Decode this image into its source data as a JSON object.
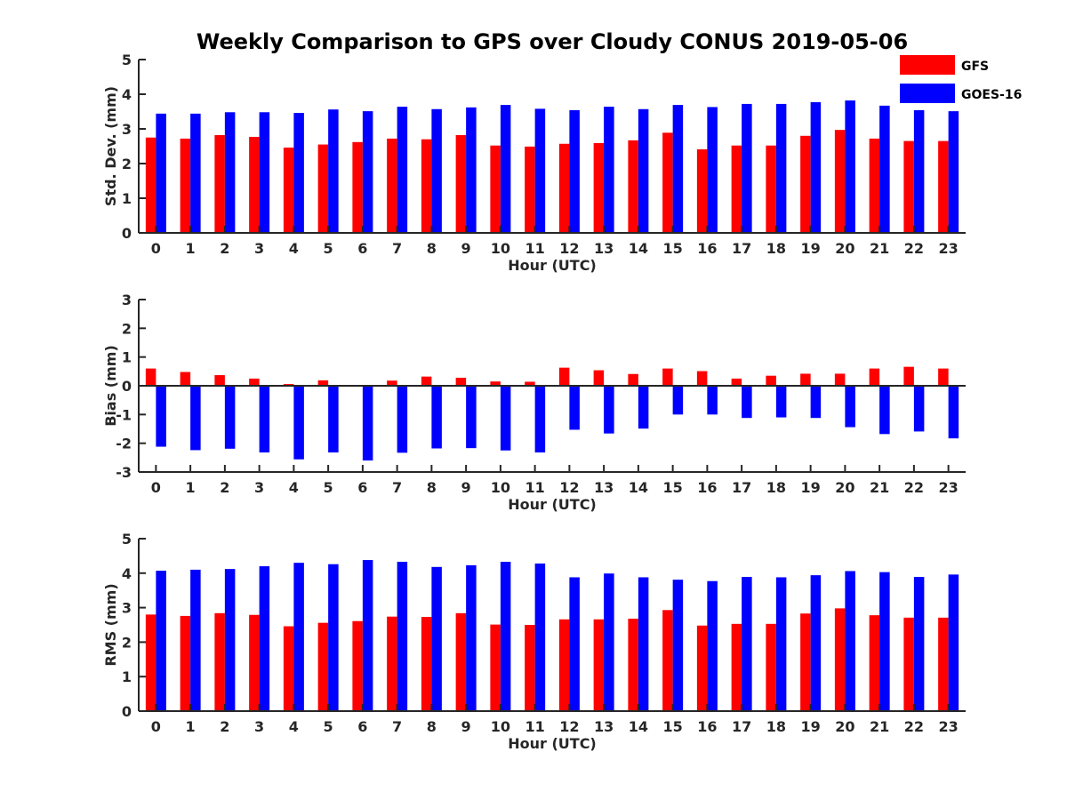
{
  "figure": {
    "title": "Weekly Comparison to GPS over Cloudy CONUS 2019-05-06"
  },
  "legend": {
    "placement": "top-right",
    "entries": [
      {
        "name": "GFS",
        "color": "#ff0000"
      },
      {
        "name": "GOES-16",
        "color": "#0000ff"
      }
    ]
  },
  "chart_data": [
    {
      "type": "bar",
      "title": "",
      "xlabel": "Hour (UTC)",
      "ylabel": "Std. Dev. (mm)",
      "ylim": [
        0,
        5
      ],
      "yticks": [
        0,
        1,
        2,
        3,
        4,
        5
      ],
      "categories": [
        "0",
        "1",
        "2",
        "3",
        "4",
        "5",
        "6",
        "7",
        "8",
        "9",
        "10",
        "11",
        "12",
        "13",
        "14",
        "15",
        "16",
        "17",
        "18",
        "19",
        "20",
        "21",
        "22",
        "23"
      ],
      "series": [
        {
          "name": "GFS",
          "color": "#ff0000",
          "values": [
            2.75,
            2.72,
            2.82,
            2.77,
            2.46,
            2.55,
            2.62,
            2.72,
            2.7,
            2.82,
            2.52,
            2.49,
            2.57,
            2.59,
            2.67,
            2.89,
            2.41,
            2.52,
            2.52,
            2.8,
            2.97,
            2.72,
            2.65,
            2.65
          ]
        },
        {
          "name": "GOES-16",
          "color": "#0000ff",
          "values": [
            3.44,
            3.44,
            3.48,
            3.48,
            3.46,
            3.56,
            3.51,
            3.64,
            3.57,
            3.62,
            3.69,
            3.58,
            3.54,
            3.64,
            3.57,
            3.69,
            3.63,
            3.72,
            3.72,
            3.77,
            3.82,
            3.67,
            3.54,
            3.51
          ]
        }
      ]
    },
    {
      "type": "bar",
      "title": "",
      "xlabel": "Hour (UTC)",
      "ylabel": "Bias (mm)",
      "ylim": [
        -3,
        3
      ],
      "yticks": [
        -3,
        -2,
        -1,
        0,
        1,
        2,
        3
      ],
      "categories": [
        "0",
        "1",
        "2",
        "3",
        "4",
        "5",
        "6",
        "7",
        "8",
        "9",
        "10",
        "11",
        "12",
        "13",
        "14",
        "15",
        "16",
        "17",
        "18",
        "19",
        "20",
        "21",
        "22",
        "23"
      ],
      "series": [
        {
          "name": "GFS",
          "color": "#ff0000",
          "values": [
            0.6,
            0.48,
            0.37,
            0.25,
            0.06,
            0.19,
            0.03,
            0.18,
            0.32,
            0.28,
            0.15,
            0.14,
            0.63,
            0.54,
            0.41,
            0.6,
            0.51,
            0.25,
            0.35,
            0.42,
            0.42,
            0.6,
            0.66,
            0.6
          ]
        },
        {
          "name": "GOES-16",
          "color": "#0000ff",
          "values": [
            -2.12,
            -2.24,
            -2.19,
            -2.32,
            -2.56,
            -2.32,
            -2.6,
            -2.33,
            -2.18,
            -2.17,
            -2.25,
            -2.32,
            -1.53,
            -1.66,
            -1.49,
            -1.0,
            -1.0,
            -1.12,
            -1.1,
            -1.12,
            -1.44,
            -1.68,
            -1.59,
            -1.83
          ]
        }
      ]
    },
    {
      "type": "bar",
      "title": "",
      "xlabel": "Hour (UTC)",
      "ylabel": "RMS (mm)",
      "ylim": [
        0,
        5
      ],
      "yticks": [
        0,
        1,
        2,
        3,
        4,
        5
      ],
      "categories": [
        "0",
        "1",
        "2",
        "3",
        "4",
        "5",
        "6",
        "7",
        "8",
        "9",
        "10",
        "11",
        "12",
        "13",
        "14",
        "15",
        "16",
        "17",
        "18",
        "19",
        "20",
        "21",
        "22",
        "23"
      ],
      "series": [
        {
          "name": "GFS",
          "color": "#ff0000",
          "values": [
            2.8,
            2.76,
            2.84,
            2.79,
            2.46,
            2.56,
            2.61,
            2.74,
            2.73,
            2.84,
            2.51,
            2.5,
            2.66,
            2.66,
            2.68,
            2.93,
            2.48,
            2.53,
            2.53,
            2.83,
            2.98,
            2.78,
            2.71,
            2.71
          ]
        },
        {
          "name": "GOES-16",
          "color": "#0000ff",
          "values": [
            4.07,
            4.1,
            4.12,
            4.2,
            4.3,
            4.26,
            4.38,
            4.33,
            4.18,
            4.23,
            4.33,
            4.28,
            3.88,
            3.99,
            3.88,
            3.81,
            3.77,
            3.89,
            3.88,
            3.94,
            4.06,
            4.03,
            3.89,
            3.96
          ]
        }
      ]
    }
  ]
}
